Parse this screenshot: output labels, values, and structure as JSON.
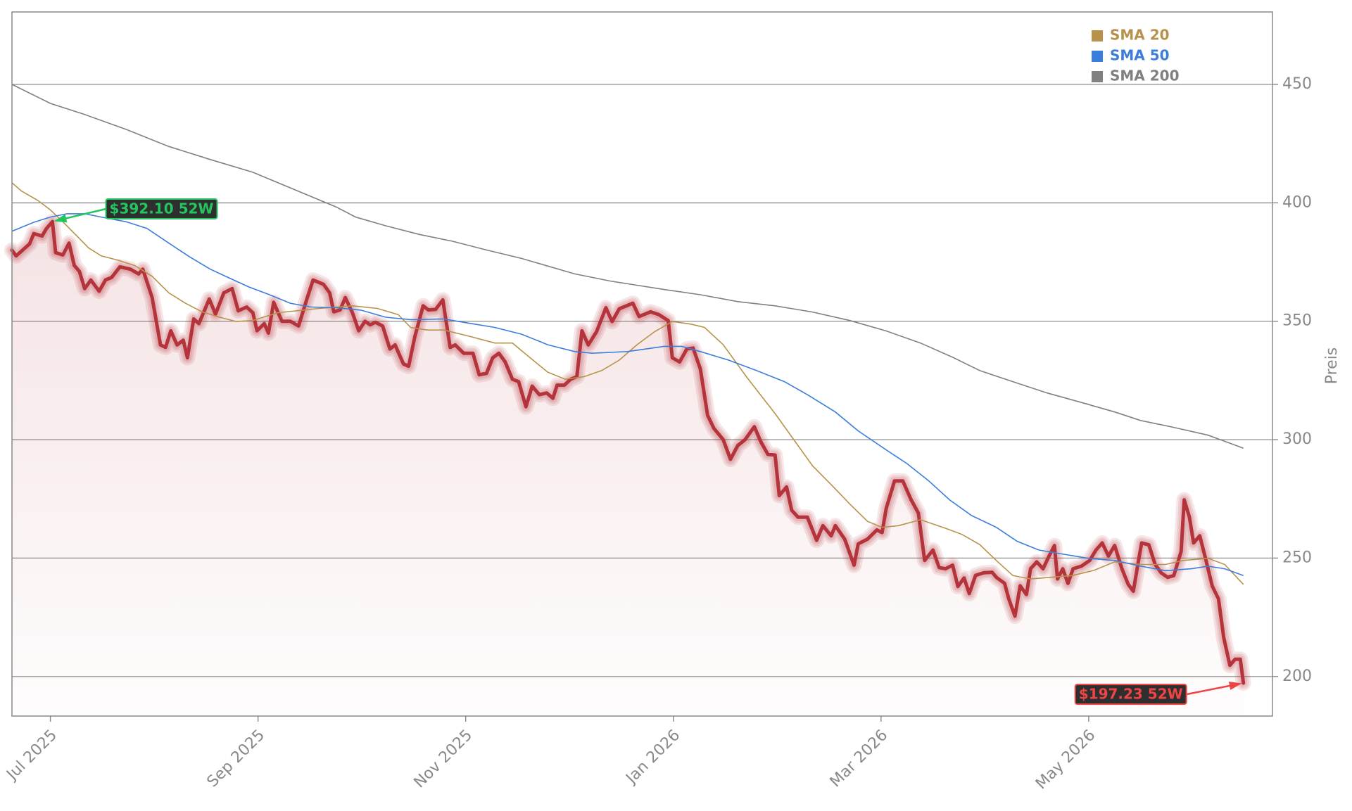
{
  "chart_data": {
    "type": "line",
    "xlim": [
      -0.37,
      11.77
    ],
    "xticks": [
      {
        "value": 0,
        "label": "Jul 2025"
      },
      {
        "value": 2,
        "label": "Sep 2025"
      },
      {
        "value": 4,
        "label": "Nov 2025"
      },
      {
        "value": 6,
        "label": "Jan 2026"
      },
      {
        "value": 8,
        "label": "Mar 2026"
      },
      {
        "value": 10,
        "label": "May 2026"
      }
    ],
    "ylim": [
      183.3,
      480.6
    ],
    "yticks": [
      200,
      250,
      300,
      350,
      400,
      450
    ],
    "y_label": "Preis",
    "grid": true,
    "legend": "upper right",
    "series": [
      {
        "color": "#b5343c",
        "area": true,
        "x": [
          -0.37,
          -0.33,
          -0.2,
          -0.16,
          -0.08,
          -0.04,
          0.02,
          0.05,
          0.12,
          0.18,
          0.23,
          0.28,
          0.33,
          0.39,
          0.47,
          0.53,
          0.59,
          0.67,
          0.77,
          0.85,
          0.89,
          0.98,
          1.06,
          1.11,
          1.16,
          1.22,
          1.28,
          1.32,
          1.38,
          1.43,
          1.53,
          1.59,
          1.67,
          1.75,
          1.81,
          1.89,
          1.95,
          1.99,
          2.06,
          2.1,
          2.15,
          2.23,
          2.31,
          2.39,
          2.47,
          2.53,
          2.63,
          2.69,
          2.73,
          2.79,
          2.84,
          2.91,
          2.97,
          3.03,
          3.08,
          3.13,
          3.2,
          3.27,
          3.32,
          3.4,
          3.45,
          3.51,
          3.59,
          3.64,
          3.71,
          3.78,
          3.85,
          3.9,
          3.98,
          4.07,
          4.13,
          4.2,
          4.26,
          4.32,
          4.38,
          4.45,
          4.51,
          4.58,
          4.64,
          4.71,
          4.78,
          4.84,
          4.88,
          4.95,
          5.01,
          5.07,
          5.12,
          5.18,
          5.26,
          5.35,
          5.41,
          5.48,
          5.61,
          5.67,
          5.78,
          5.86,
          5.95,
          5.99,
          6.06,
          6.13,
          6.19,
          6.26,
          6.33,
          6.39,
          6.48,
          6.55,
          6.62,
          6.69,
          6.78,
          6.84,
          6.91,
          6.98,
          7.02,
          7.09,
          7.14,
          7.2,
          7.29,
          7.38,
          7.44,
          7.52,
          7.56,
          7.65,
          7.74,
          7.78,
          7.87,
          7.96,
          8.01,
          8.05,
          8.13,
          8.21,
          8.29,
          8.36,
          8.42,
          8.5,
          8.56,
          8.62,
          8.69,
          8.74,
          8.8,
          8.85,
          8.91,
          8.99,
          9.07,
          9.11,
          9.19,
          9.23,
          9.29,
          9.34,
          9.4,
          9.44,
          9.5,
          9.56,
          9.62,
          9.67,
          9.7,
          9.75,
          9.8,
          9.85,
          9.93,
          10.01,
          10.07,
          10.13,
          10.19,
          10.25,
          10.32,
          10.38,
          10.43,
          10.48,
          10.51,
          10.58,
          10.64,
          10.7,
          10.76,
          10.82,
          10.89,
          10.92,
          10.97,
          11.01,
          11.07,
          11.13,
          11.19,
          11.25,
          11.3,
          11.36,
          11.41,
          11.46,
          11.49
        ],
        "values": [
          380,
          377.6,
          382.7,
          387,
          386,
          389,
          392.1,
          379,
          378,
          383,
          373.6,
          371,
          363.8,
          367.4,
          362.7,
          367.4,
          368.5,
          373,
          372,
          370,
          372,
          360,
          340,
          339,
          346,
          340,
          342,
          334.6,
          351,
          349,
          359.4,
          353,
          362,
          363.8,
          354.4,
          356,
          353.6,
          346,
          349,
          345,
          358,
          350,
          350,
          348,
          359.4,
          367.4,
          365.6,
          362,
          354,
          354.8,
          360,
          353.5,
          346,
          350,
          348.5,
          349.6,
          348,
          338.3,
          340,
          332,
          331,
          343.5,
          356.5,
          354.8,
          355,
          359,
          339,
          340,
          336.5,
          336.5,
          327.4,
          328,
          334.6,
          336.5,
          332.8,
          325.5,
          324.5,
          313.9,
          322.6,
          319,
          319.7,
          317.5,
          323,
          323,
          325.5,
          326.6,
          346,
          340,
          345.6,
          355.7,
          349.9,
          355.3,
          357.6,
          352,
          354,
          352.8,
          350.3,
          334.6,
          332.8,
          338.3,
          338.7,
          329.9,
          310.3,
          304.8,
          300,
          291.7,
          297.5,
          300,
          305.5,
          299.3,
          293.8,
          293.5,
          276.4,
          280,
          270.2,
          267.3,
          267.3,
          257.5,
          263.7,
          259.4,
          263.7,
          258,
          247,
          256,
          258,
          261.9,
          260.8,
          271,
          282.6,
          282.6,
          274.6,
          269,
          249,
          253.4,
          246,
          245.5,
          247,
          238,
          241.6,
          235,
          242.7,
          243.8,
          244,
          241.9,
          239.3,
          232.8,
          225.5,
          238.3,
          234.6,
          245.5,
          248.4,
          245.5,
          251,
          255.3,
          241.2,
          245.5,
          239.3,
          245.5,
          246.6,
          249,
          253.4,
          256.4,
          250.9,
          255.3,
          245.5,
          239,
          236,
          249,
          256.4,
          255.6,
          247.3,
          243.7,
          241.9,
          242.6,
          252.8,
          274.6,
          267.3,
          256.4,
          259.4,
          249,
          238.2,
          232.8,
          216.5,
          204.7,
          207.3,
          207.3,
          197.23
        ]
      },
      {
        "name": "SMA 20",
        "color": "#b8924a",
        "x": [
          -0.37,
          -0.28,
          -0.12,
          0,
          0.12,
          0.24,
          0.37,
          0.49,
          0.65,
          0.81,
          0.98,
          1.14,
          1.3,
          1.46,
          1.63,
          1.79,
          1.95,
          2.19,
          2.43,
          2.59,
          2.91,
          3.15,
          3.35,
          3.47,
          3.63,
          3.79,
          4.03,
          4.28,
          4.45,
          4.62,
          4.79,
          4.96,
          5.14,
          5.31,
          5.48,
          5.65,
          5.82,
          5.99,
          6.17,
          6.3,
          6.48,
          6.71,
          6.98,
          7.16,
          7.34,
          7.52,
          7.7,
          7.87,
          8.01,
          8.17,
          8.38,
          8.62,
          8.78,
          8.95,
          9.11,
          9.27,
          9.44,
          9.64,
          9.84,
          10.05,
          10.25,
          10.5,
          10.74,
          10.91,
          11.15,
          11.31,
          11.49
        ],
        "values": [
          408.5,
          405,
          401,
          397,
          392,
          386.7,
          380.9,
          377.6,
          375.8,
          373.6,
          369,
          362,
          357.6,
          354,
          351.7,
          349.9,
          350.3,
          353.6,
          354.7,
          355.4,
          356.5,
          355.4,
          352.8,
          347.4,
          346.3,
          346.3,
          343.7,
          340.8,
          340.8,
          334.6,
          328.5,
          325.5,
          326.6,
          329.2,
          333.6,
          340.1,
          345.6,
          349.9,
          348.8,
          347.4,
          340.1,
          326.2,
          311,
          300,
          289,
          281,
          272.8,
          265.5,
          263,
          263.7,
          266.2,
          262.6,
          260,
          255.7,
          249,
          242.6,
          241.2,
          241.9,
          242.6,
          244.8,
          248.4,
          247.3,
          247.3,
          249,
          249.9,
          247.3,
          238.9
        ]
      },
      {
        "name": "SMA 50",
        "color": "#3b7ddd",
        "x": [
          -0.37,
          -0.16,
          0,
          0.16,
          0.33,
          0.49,
          0.73,
          0.93,
          1.14,
          1.34,
          1.54,
          1.71,
          1.91,
          2.11,
          2.31,
          2.51,
          2.75,
          2.99,
          3.23,
          3.47,
          3.79,
          4.03,
          4.28,
          4.54,
          4.79,
          5.05,
          5.22,
          5.56,
          5.91,
          6.08,
          6.26,
          6.53,
          6.8,
          7.07,
          7.29,
          7.56,
          7.78,
          8.05,
          8.25,
          8.46,
          8.66,
          8.87,
          9.11,
          9.31,
          9.52,
          9.76,
          10.01,
          10.25,
          10.5,
          10.74,
          10.99,
          11.15,
          11.31,
          11.49
        ],
        "values": [
          388,
          391.8,
          394,
          395.4,
          395.4,
          394,
          392,
          389.2,
          383,
          377.2,
          372,
          368.5,
          364.5,
          361.2,
          357.6,
          356,
          355.7,
          354.7,
          351.7,
          350.7,
          351,
          349.2,
          347.4,
          344.5,
          340.1,
          337.2,
          336.5,
          337.2,
          339.4,
          339.4,
          337.2,
          333.6,
          329.2,
          324.5,
          319,
          311.7,
          303.7,
          295.7,
          289.9,
          282.6,
          274.6,
          268,
          263,
          257.1,
          253.4,
          251.6,
          249.8,
          249,
          246.6,
          244.7,
          245.5,
          246.6,
          245.5,
          242.6
        ]
      },
      {
        "name": "SMA 200",
        "color": "#808080",
        "x": [
          -0.37,
          0,
          0.33,
          0.73,
          1.14,
          1.54,
          1.95,
          2.35,
          2.75,
          2.94,
          3.23,
          3.55,
          3.87,
          4.2,
          4.54,
          5.05,
          5.39,
          5.91,
          6.26,
          6.62,
          6.98,
          7.34,
          7.7,
          8.05,
          8.38,
          8.7,
          8.95,
          9.27,
          9.6,
          9.93,
          10.25,
          10.5,
          10.82,
          11.15,
          11.31,
          11.49
        ],
        "values": [
          450,
          442,
          437.3,
          431,
          423.8,
          418.3,
          412.9,
          405.6,
          398.3,
          394,
          390.3,
          386.7,
          383.8,
          380.1,
          376.5,
          370,
          367,
          363.4,
          361.2,
          358.3,
          356.5,
          353.9,
          350.3,
          345.9,
          340.8,
          334.6,
          329.2,
          324.5,
          319.7,
          315.7,
          311.7,
          308.1,
          305.2,
          301.9,
          299.3,
          296.4
        ]
      }
    ],
    "annotations": [
      {
        "label": "$392.10 52W",
        "value": 392.1,
        "x": 0.02,
        "color": "#22c55e"
      },
      {
        "label": "$197.23 52W",
        "value": 197.23,
        "x": 11.49,
        "color": "#ef4444"
      }
    ]
  }
}
